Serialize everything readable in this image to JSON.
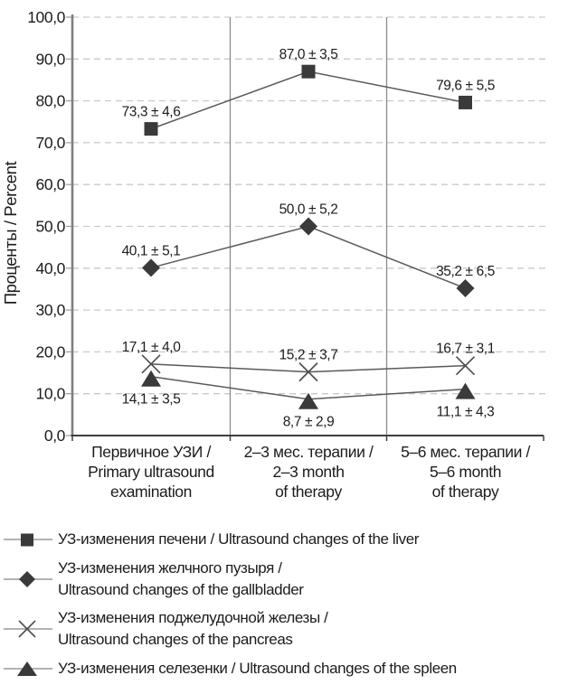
{
  "chart_data": {
    "type": "line",
    "title": "",
    "ylabel": "Проценты / Percent",
    "xlabel": "",
    "ylim": [
      0,
      100
    ],
    "ytick_step": 10,
    "ytick_labels": [
      "0,0",
      "10,0",
      "20,0",
      "30,0",
      "40,0",
      "50,0",
      "60,0",
      "70,0",
      "80,0",
      "90,0",
      "100,0"
    ],
    "grid": "horizontal-dashed",
    "legend_position": "bottom",
    "categories": [
      {
        "lines": [
          "Первичное УЗИ /",
          "Primary ultrasound",
          "examination"
        ]
      },
      {
        "lines": [
          "2–3 мес. терапии /",
          "2–3 month",
          "of therapy"
        ]
      },
      {
        "lines": [
          "5–6 мес. терапии /",
          "5–6 month",
          "of therapy"
        ]
      }
    ],
    "series": [
      {
        "name": "УЗ-изменения печени / Ultrasound changes of the liver",
        "marker": "square",
        "values": [
          73.3,
          87.0,
          79.6
        ],
        "errors": [
          4.6,
          3.5,
          5.5
        ],
        "labels": [
          "73,3 ± 4,6",
          "87,0 ± 3,5",
          "79,6 ± 5,5"
        ],
        "label_position": "above"
      },
      {
        "name": "УЗ-изменения желчного пузыря / Ultrasound changes of the gallbladder",
        "marker": "diamond",
        "values": [
          40.1,
          50.0,
          35.2
        ],
        "errors": [
          5.1,
          5.2,
          6.5
        ],
        "labels": [
          "40,1 ± 5,1",
          "50,0 ± 5,2",
          "35,2 ± 6,5"
        ],
        "label_position": "above"
      },
      {
        "name": "УЗ-изменения поджелудочной железы / Ultrasound changes of the pancreas",
        "marker": "x",
        "values": [
          17.1,
          15.2,
          16.7
        ],
        "errors": [
          4.0,
          3.7,
          3.1
        ],
        "labels": [
          "17,1 ± 4,0",
          "15,2 ± 3,7",
          "16,7 ± 3,1"
        ],
        "label_position": "above"
      },
      {
        "name": "УЗ-изменения селезенки / Ultrasound changes of the spleen",
        "marker": "triangle",
        "values": [
          14.1,
          8.7,
          11.1
        ],
        "errors": [
          3.5,
          2.9,
          4.3
        ],
        "labels": [
          "14,1 ± 3,5",
          "8,7 ± 2,9",
          "11,1 ± 4,3"
        ],
        "label_position": "below"
      }
    ],
    "legend": [
      {
        "marker": "square",
        "lines": [
          "УЗ-изменения печени / Ultrasound changes of the liver"
        ]
      },
      {
        "marker": "diamond",
        "lines": [
          "УЗ-изменения желчного пузыря /",
          "Ultrasound changes of the gallbladder"
        ]
      },
      {
        "marker": "x",
        "lines": [
          "УЗ-изменения поджелудочной железы /",
          "Ultrasound changes of the pancreas"
        ]
      },
      {
        "marker": "triangle",
        "lines": [
          "УЗ-изменения селезенки / Ultrasound changes of the spleen"
        ]
      }
    ],
    "colors": {
      "marker_fill": "#3a3a3a",
      "series_line": "#5a5a5a",
      "grid_line": "#c9c9c9",
      "divider_line": "#8a8a8a",
      "y_axis": "#7f7f7f",
      "x_axis": "#3f3f3f",
      "text": "#1c1c1c",
      "legend_line": "#999999",
      "background": "#ffffff"
    }
  }
}
